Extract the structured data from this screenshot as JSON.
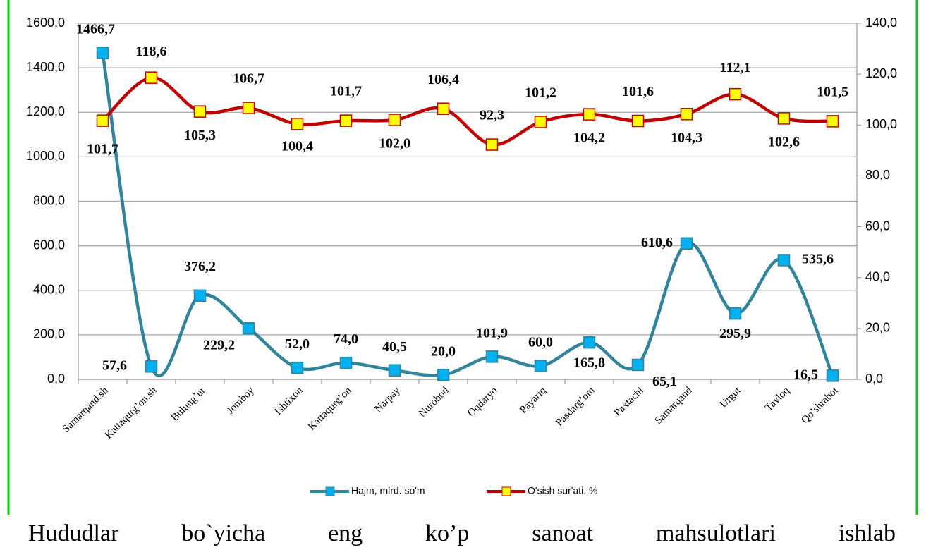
{
  "chart_data": {
    "type": "line",
    "categories": [
      "Samarqand.sh",
      "Kattaqurg’on.sh",
      "Bulung’ur",
      "Jomboy",
      "Ishtixon",
      "Kattaqurg’on",
      "Narpay",
      "Nurobod",
      "Oqdaryo",
      "Payariq",
      "Pasdarg’om",
      "Paxtachi",
      "Samarqand",
      "Urgut",
      "Tayloq",
      "Qo’shrabot"
    ],
    "series": [
      {
        "name": "Hajm, mlrd. so'm",
        "color": "#31849b",
        "marker_color": "#00b0f0",
        "values": [
          1466.7,
          57.6,
          376.2,
          229.2,
          52.0,
          74.0,
          40.5,
          20.0,
          101.9,
          60.0,
          165.8,
          65.1,
          610.6,
          295.9,
          535.6,
          16.5
        ],
        "value_labels": [
          "1466,7",
          "57,6",
          "376,2",
          "229,2",
          "52,0",
          "74,0",
          "40,5",
          "20,0",
          "101,9",
          "60,0",
          "165,8",
          "65,1",
          "610,6",
          "295,9",
          "535,6",
          "16,5"
        ]
      },
      {
        "name": "O'sish sur'ati, %",
        "color": "#c00000",
        "marker_color": "#ffff00",
        "axis": "y2",
        "values": [
          101.7,
          118.6,
          105.3,
          106.7,
          100.4,
          101.7,
          102.0,
          106.4,
          92.3,
          101.2,
          104.2,
          101.6,
          104.3,
          112.1,
          102.6,
          101.5
        ],
        "value_labels": [
          "101,7",
          "118,6",
          "105,3",
          "106,7",
          "100,4",
          "101,7",
          "102,0",
          "106,4",
          "92,3",
          "101,2",
          "104,2",
          "101,6",
          "104,3",
          "112,1",
          "102,6",
          "101,5"
        ]
      }
    ],
    "ylim": [
      0,
      1600
    ],
    "yticks": [
      {
        "value": 0,
        "label": "0,0"
      },
      {
        "value": 200,
        "label": "200,0"
      },
      {
        "value": 400,
        "label": "400,0"
      },
      {
        "value": 600,
        "label": "600,0"
      },
      {
        "value": 800,
        "label": "800,0"
      },
      {
        "value": 1000,
        "label": "1000,0"
      },
      {
        "value": 1200,
        "label": "1200,0"
      },
      {
        "value": 1400,
        "label": "1400,0"
      },
      {
        "value": 1600,
        "label": "1600,0"
      }
    ],
    "y2lim": [
      0,
      140
    ],
    "y2ticks": [
      {
        "value": 0,
        "label": "0,0"
      },
      {
        "value": 20,
        "label": "20,0"
      },
      {
        "value": 40,
        "label": "40,0"
      },
      {
        "value": 60,
        "label": "60,0"
      },
      {
        "value": 80,
        "label": "80,0"
      },
      {
        "value": 100,
        "label": "100,0"
      },
      {
        "value": 120,
        "label": "120,0"
      },
      {
        "value": 140,
        "label": "140,0"
      }
    ],
    "grid": true,
    "legend": "bottom"
  },
  "paragraph": [
    "Hududlar",
    "bo`yicha",
    "eng",
    "ko’p",
    "sanoat",
    "mahsulotlari",
    "ishlab"
  ]
}
